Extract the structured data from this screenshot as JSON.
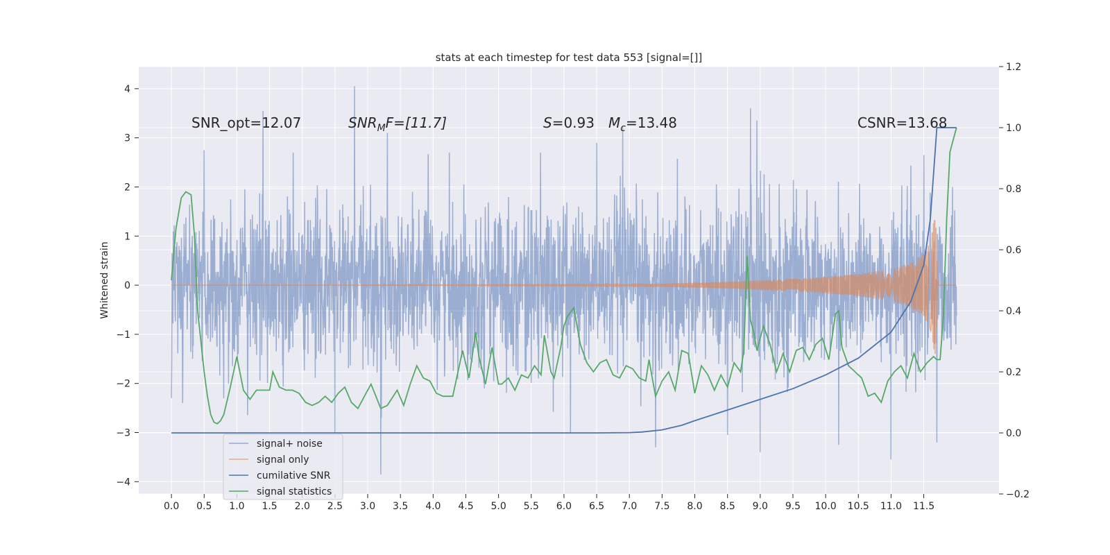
{
  "chart_data": {
    "type": "line",
    "title": "stats at each timestep for test data 553 [signal=[]]",
    "ylabel": "Whitened strain",
    "xlabel": "",
    "xlim": [
      -0.5,
      12.65
    ],
    "ylim": [
      -4.25,
      4.45
    ],
    "y2lim": [
      -0.2,
      1.2
    ],
    "x_ticks": [
      0.0,
      0.5,
      1.0,
      1.5,
      2.0,
      2.5,
      3.0,
      3.5,
      4.0,
      4.5,
      5.0,
      5.5,
      6.0,
      6.5,
      7.0,
      7.5,
      8.0,
      8.5,
      9.0,
      9.5,
      10.0,
      10.5,
      11.0,
      11.5
    ],
    "x_tick_labels": [
      "0.0",
      "0.5",
      "1.0",
      "1.5",
      "2.0",
      "2.5",
      "3.0",
      "3.5",
      "4.0",
      "4.5",
      "5.0",
      "5.5",
      "6.0",
      "6.5",
      "7.0",
      "7.5",
      "8.0",
      "8.5",
      "9.0",
      "9.5",
      "10.0",
      "10.5",
      "11.0",
      "11.5"
    ],
    "y_ticks": [
      4,
      3,
      2,
      1,
      0,
      -1,
      -2,
      -3,
      -4
    ],
    "y_tick_labels": [
      "4",
      "3",
      "2",
      "1",
      "0",
      "−1",
      "−2",
      "−3",
      "−4"
    ],
    "y2_ticks": [
      1.2,
      1.0,
      0.8,
      0.6,
      0.4,
      0.2,
      0.0,
      -0.2
    ],
    "y2_tick_labels": [
      "1.2",
      "1.0",
      "0.8",
      "0.6",
      "0.4",
      "0.2",
      "0.0",
      "−0.2"
    ],
    "annotations": {
      "snr_opt": "SNR_opt=12.07",
      "snr_mf_main": "SNR",
      "snr_mf_sub": "M",
      "snr_mf_rest": "F=[11.7]",
      "s_var": "S",
      "s_val": "=0.93",
      "mc_var": "M",
      "mc_sub": "c",
      "mc_val": "=13.48",
      "csnr": "CSNR=13.68"
    },
    "legend": {
      "position": "lower-left",
      "entries": [
        {
          "label": "signal+ noise",
          "color": "#4c72b0",
          "alpha": 0.5
        },
        {
          "label": "signal only",
          "color": "#dd8452",
          "alpha": 0.6
        },
        {
          "label": "cumilative SNR",
          "color": "#4c72b0",
          "alpha": 1.0
        },
        {
          "label": "signal statistics",
          "color": "#55a868",
          "alpha": 1.0
        }
      ]
    },
    "series": [
      {
        "name": "signal+ noise",
        "axis": "left",
        "note": "dense random whitened strain, approx std 0.8, from x=0 to x=12.0",
        "x_range": [
          0.0,
          12.0
        ],
        "spike_x": [
          0.0,
          0.17,
          0.5,
          0.8,
          1.4,
          2.5,
          2.8,
          3.2,
          3.3,
          6.1,
          6.5,
          6.9,
          7.4,
          8.5,
          8.85,
          8.95,
          9.0,
          10.2,
          11.0,
          11.5,
          11.7
        ],
        "spike_y": [
          -2.3,
          -2.4,
          2.75,
          -2.3,
          3.55,
          -3.0,
          4.05,
          -3.85,
          3.1,
          -3.0,
          2.9,
          3.25,
          -3.3,
          -3.05,
          3.6,
          3.35,
          -3.4,
          -3.25,
          -3.55,
          2.65,
          -3.2
        ]
      },
      {
        "name": "signal only",
        "axis": "left",
        "note": "chirp, amplitude envelope grows toward merger at x=11.7",
        "x": [
          0.0,
          6.5,
          7.0,
          7.5,
          8.0,
          8.5,
          9.0,
          9.5,
          10.0,
          10.5,
          11.0,
          11.3,
          11.5,
          11.6,
          11.68,
          11.72,
          12.0
        ],
        "amplitude": [
          0.0,
          0.01,
          0.02,
          0.03,
          0.05,
          0.07,
          0.1,
          0.13,
          0.17,
          0.23,
          0.33,
          0.45,
          0.65,
          0.9,
          1.5,
          0.0,
          0.0
        ]
      },
      {
        "name": "cumilative SNR",
        "axis": "right",
        "x": [
          0.0,
          6.5,
          7.0,
          7.2,
          7.5,
          7.8,
          8.0,
          8.5,
          9.0,
          9.5,
          10.0,
          10.5,
          11.0,
          11.3,
          11.5,
          11.6,
          11.7,
          12.0
        ],
        "y": [
          0.0,
          0.0,
          0.001,
          0.003,
          0.01,
          0.025,
          0.04,
          0.075,
          0.11,
          0.145,
          0.19,
          0.245,
          0.33,
          0.43,
          0.55,
          0.7,
          1.0,
          1.0
        ]
      },
      {
        "name": "signal statistics",
        "axis": "right",
        "x": [
          0.0,
          0.07,
          0.15,
          0.22,
          0.3,
          0.35,
          0.4,
          0.5,
          0.55,
          0.6,
          0.65,
          0.7,
          0.75,
          0.8,
          0.9,
          1.0,
          1.1,
          1.2,
          1.3,
          1.45,
          1.5,
          1.55,
          1.65,
          1.75,
          1.85,
          1.95,
          2.05,
          2.15,
          2.25,
          2.35,
          2.45,
          2.55,
          2.65,
          2.75,
          2.85,
          2.95,
          3.05,
          3.2,
          3.3,
          3.45,
          3.55,
          3.65,
          3.75,
          3.85,
          3.95,
          4.05,
          4.15,
          4.3,
          4.45,
          4.55,
          4.65,
          4.7,
          4.8,
          4.9,
          5.0,
          5.05,
          5.15,
          5.25,
          5.35,
          5.45,
          5.55,
          5.65,
          5.7,
          5.8,
          5.85,
          5.95,
          6.0,
          6.05,
          6.15,
          6.25,
          6.35,
          6.45,
          6.55,
          6.65,
          6.75,
          6.85,
          6.95,
          7.05,
          7.15,
          7.25,
          7.3,
          7.4,
          7.5,
          7.6,
          7.7,
          7.8,
          7.9,
          8.0,
          8.1,
          8.2,
          8.3,
          8.4,
          8.5,
          8.6,
          8.7,
          8.75,
          8.8,
          8.85,
          8.9,
          8.95,
          9.05,
          9.15,
          9.25,
          9.35,
          9.45,
          9.55,
          9.65,
          9.75,
          9.85,
          9.95,
          10.05,
          10.15,
          10.2,
          10.25,
          10.35,
          10.45,
          10.55,
          10.65,
          10.75,
          10.85,
          10.95,
          11.05,
          11.15,
          11.25,
          11.35,
          11.45,
          11.55,
          11.65,
          11.7,
          11.75,
          11.8,
          11.85,
          11.9,
          11.95,
          12.0
        ],
        "y": [
          0.5,
          0.67,
          0.77,
          0.79,
          0.78,
          0.65,
          0.4,
          0.2,
          0.12,
          0.06,
          0.035,
          0.03,
          0.04,
          0.06,
          0.15,
          0.25,
          0.14,
          0.11,
          0.14,
          0.14,
          0.14,
          0.2,
          0.15,
          0.14,
          0.14,
          0.13,
          0.1,
          0.09,
          0.1,
          0.12,
          0.1,
          0.13,
          0.15,
          0.1,
          0.08,
          0.12,
          0.16,
          0.08,
          0.09,
          0.14,
          0.09,
          0.16,
          0.22,
          0.18,
          0.17,
          0.13,
          0.12,
          0.12,
          0.27,
          0.18,
          0.33,
          0.25,
          0.16,
          0.28,
          0.16,
          0.16,
          0.18,
          0.14,
          0.19,
          0.18,
          0.22,
          0.19,
          0.32,
          0.2,
          0.18,
          0.28,
          0.35,
          0.38,
          0.41,
          0.29,
          0.23,
          0.2,
          0.23,
          0.24,
          0.19,
          0.18,
          0.22,
          0.21,
          0.18,
          0.17,
          0.24,
          0.12,
          0.17,
          0.2,
          0.14,
          0.27,
          0.26,
          0.13,
          0.22,
          0.19,
          0.14,
          0.19,
          0.15,
          0.23,
          0.2,
          0.27,
          0.58,
          0.37,
          0.33,
          0.27,
          0.35,
          0.29,
          0.2,
          0.26,
          0.2,
          0.27,
          0.28,
          0.24,
          0.29,
          0.31,
          0.24,
          0.39,
          0.4,
          0.28,
          0.22,
          0.2,
          0.18,
          0.12,
          0.13,
          0.1,
          0.17,
          0.2,
          0.22,
          0.18,
          0.26,
          0.2,
          0.23,
          0.25,
          0.24,
          0.24,
          0.38,
          0.7,
          0.92,
          0.96,
          1.0
        ]
      }
    ]
  }
}
